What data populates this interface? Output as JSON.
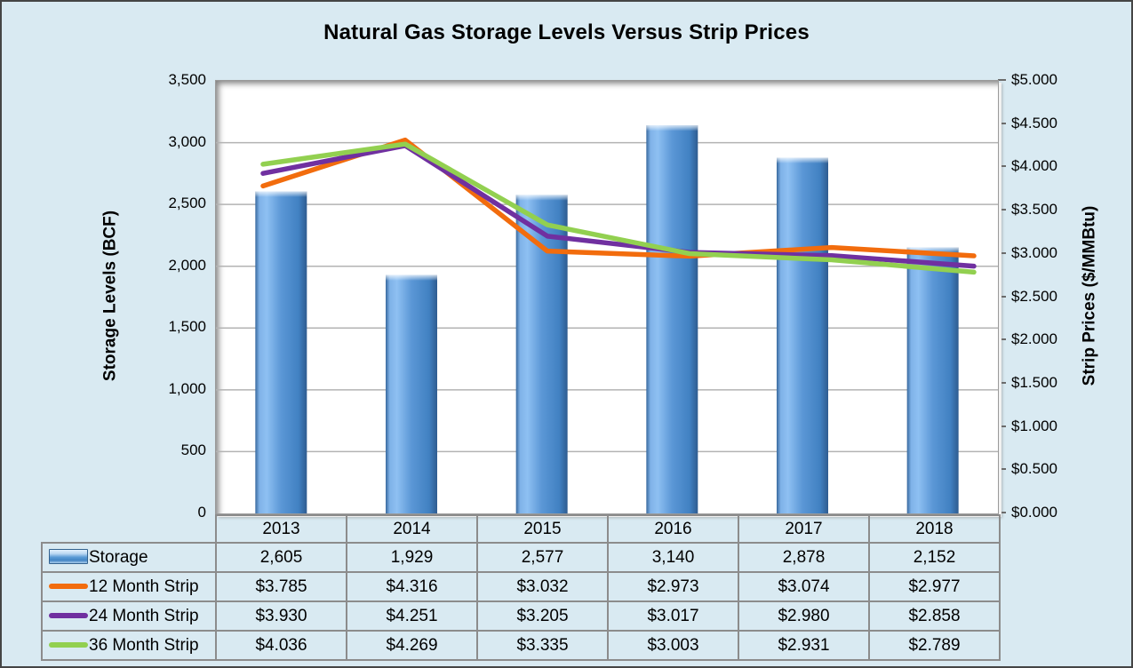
{
  "title": "Natural Gas Storage Levels Versus Strip Prices",
  "chart_data": {
    "type": "combo-bar-line",
    "categories": [
      "2013",
      "2014",
      "2015",
      "2016",
      "2017",
      "2018"
    ],
    "bar_series": {
      "name": "Storage",
      "axis": "left",
      "values": [
        2605,
        1929,
        2577,
        3140,
        2878,
        2152
      ],
      "color": "#5b9bd5"
    },
    "line_series": [
      {
        "name": "12 Month Strip",
        "axis": "right",
        "values": [
          3.785,
          4.316,
          3.032,
          2.973,
          3.074,
          2.977
        ],
        "color": "#f26c0d"
      },
      {
        "name": "24 Month Strip",
        "axis": "right",
        "values": [
          3.93,
          4.251,
          3.205,
          3.017,
          2.98,
          2.858
        ],
        "color": "#7030a0"
      },
      {
        "name": "36 Month Strip",
        "axis": "right",
        "values": [
          4.036,
          4.269,
          3.335,
          3.003,
          2.931,
          2.789
        ],
        "color": "#92d050"
      }
    ],
    "left_axis": {
      "label": "Storage Levels (BCF)",
      "min": 0,
      "max": 3500,
      "step": 500,
      "tick_labels": [
        "3,500",
        "3,000",
        "2,500",
        "2,000",
        "1,500",
        "1,000",
        "500",
        "0"
      ]
    },
    "right_axis": {
      "label": "Strip Prices ($/MMBtu)",
      "min": 0,
      "max": 5,
      "step": 0.5,
      "tick_labels": [
        "$5.000",
        "$4.500",
        "$4.000",
        "$3.500",
        "$3.000",
        "$2.500",
        "$2.000",
        "$1.500",
        "$1.000",
        "$0.500",
        "$0.000"
      ]
    },
    "grid": "horizontal-only",
    "legend_position": "table-left-column"
  },
  "table": {
    "rows": [
      {
        "label": "Storage",
        "swatch": "bar",
        "cells": [
          "2,605",
          "1,929",
          "2,577",
          "3,140",
          "2,878",
          "2,152"
        ]
      },
      {
        "label": "12 Month Strip",
        "swatch": "line",
        "color": "#f26c0d",
        "cells": [
          "$3.785",
          "$4.316",
          "$3.032",
          "$2.973",
          "$3.074",
          "$2.977"
        ]
      },
      {
        "label": "24 Month Strip",
        "swatch": "line",
        "color": "#7030a0",
        "cells": [
          "$3.930",
          "$4.251",
          "$3.205",
          "$3.017",
          "$2.980",
          "$2.858"
        ]
      },
      {
        "label": "36 Month Strip",
        "swatch": "line",
        "color": "#92d050",
        "cells": [
          "$4.036",
          "$4.269",
          "$3.335",
          "$3.003",
          "$2.931",
          "$2.789"
        ]
      }
    ]
  },
  "colors": {
    "background": "#d9eaf2",
    "plot_background": "#ffffff",
    "gridline": "#b3b3b3",
    "table_border": "#8c8c8c",
    "bar_fill": "#5b9bd5"
  }
}
